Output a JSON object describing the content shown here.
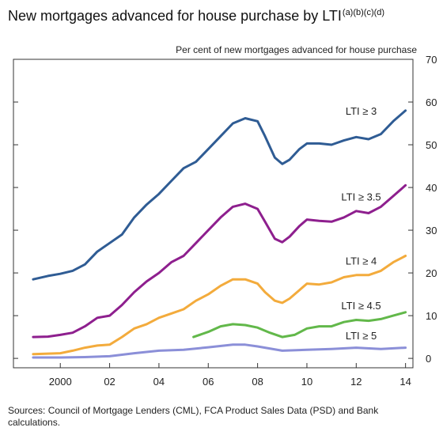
{
  "chart_data": {
    "type": "line",
    "title": "New mortgages advanced for house purchase by LTI",
    "title_notes": "(a)(b)(c)(d)",
    "y_axis_label": "Per cent of new mortgages advanced for house purchase",
    "xlim": [
      1998.1,
      2014.3
    ],
    "xticks": [
      {
        "value": 2000,
        "label": "2000"
      },
      {
        "value": 2002,
        "label": "02"
      },
      {
        "value": 2004,
        "label": "04"
      },
      {
        "value": 2006,
        "label": "06"
      },
      {
        "value": 2008,
        "label": "08"
      },
      {
        "value": 2010,
        "label": "10"
      },
      {
        "value": 2012,
        "label": "12"
      },
      {
        "value": 2014,
        "label": "14"
      }
    ],
    "ylim": [
      -2.2,
      70
    ],
    "yticks": [
      0,
      10,
      20,
      30,
      40,
      50,
      60,
      70
    ],
    "series": [
      {
        "name": "LTI ≥ 3",
        "color": "#2f5c94",
        "x": [
          1998.9,
          1999.5,
          2000,
          2000.5,
          2001,
          2001.5,
          2002,
          2002.5,
          2003,
          2003.5,
          2004,
          2004.5,
          2005,
          2005.5,
          2006,
          2006.5,
          2007,
          2007.5,
          2008,
          2008.3,
          2008.7,
          2009,
          2009.3,
          2009.7,
          2010,
          2010.5,
          2011,
          2011.5,
          2012,
          2012.5,
          2013,
          2013.5,
          2014
        ],
        "values": [
          18.5,
          19.3,
          19.8,
          20.5,
          22,
          25,
          27,
          29,
          33,
          36,
          38.5,
          41.5,
          44.5,
          46,
          49,
          52,
          55,
          56.2,
          55.5,
          52,
          47,
          45.5,
          46.5,
          49,
          50.3,
          50.3,
          50,
          51,
          51.8,
          51.3,
          52.5,
          55.5,
          58
        ]
      },
      {
        "name": "LTI ≥ 3.5",
        "color": "#8e1f8e",
        "x": [
          1998.9,
          1999.5,
          2000,
          2000.5,
          2001,
          2001.5,
          2002,
          2002.5,
          2003,
          2003.5,
          2004,
          2004.5,
          2005,
          2005.5,
          2006,
          2006.5,
          2007,
          2007.5,
          2008,
          2008.3,
          2008.7,
          2009,
          2009.3,
          2009.7,
          2010,
          2010.5,
          2011,
          2011.5,
          2012,
          2012.5,
          2013,
          2013.5,
          2014
        ],
        "values": [
          5,
          5.1,
          5.5,
          6,
          7.5,
          9.5,
          10,
          12.5,
          15.5,
          18,
          20,
          22.5,
          24,
          27,
          30,
          33,
          35.5,
          36.2,
          35,
          32,
          28,
          27.2,
          28.5,
          31,
          32.5,
          32.2,
          32,
          33,
          34.5,
          34,
          35.5,
          38,
          40.5
        ]
      },
      {
        "name": "LTI ≥ 4",
        "color": "#f3ab3c",
        "x": [
          1998.9,
          2000,
          2000.5,
          2001,
          2001.5,
          2002,
          2002.5,
          2003,
          2003.5,
          2004,
          2004.5,
          2005,
          2005.5,
          2006,
          2006.5,
          2007,
          2007.5,
          2008,
          2008.3,
          2008.7,
          2009,
          2009.3,
          2009.7,
          2010,
          2010.5,
          2011,
          2011.5,
          2012,
          2012.5,
          2013,
          2013.5,
          2014
        ],
        "values": [
          1,
          1.2,
          1.8,
          2.5,
          3,
          3.2,
          5,
          7,
          8,
          9.5,
          10.5,
          11.5,
          13.5,
          15,
          17,
          18.5,
          18.5,
          17.5,
          15.5,
          13.5,
          13,
          14,
          16,
          17.5,
          17.3,
          17.8,
          19,
          19.5,
          19.5,
          20.5,
          22.5,
          24
        ]
      },
      {
        "name": "LTI ≥ 4.5",
        "color": "#62b84a",
        "x": [
          2005.4,
          2006,
          2006.5,
          2007,
          2007.5,
          2008,
          2008.5,
          2009,
          2009.5,
          2010,
          2010.5,
          2011,
          2011.5,
          2012,
          2012.5,
          2013,
          2013.5,
          2014
        ],
        "values": [
          5,
          6.2,
          7.5,
          8,
          7.8,
          7.2,
          6,
          5,
          5.5,
          7,
          7.5,
          7.5,
          8.5,
          9,
          8.8,
          9.2,
          10,
          10.8
        ]
      },
      {
        "name": "LTI ≥ 5",
        "color": "#8b8fd8",
        "x": [
          1998.9,
          2000,
          2001,
          2002,
          2003,
          2004,
          2005,
          2006,
          2007,
          2007.5,
          2008,
          2009,
          2010,
          2011,
          2012,
          2013,
          2014
        ],
        "values": [
          0.2,
          0.2,
          0.3,
          0.5,
          1.2,
          1.8,
          2,
          2.6,
          3.2,
          3.2,
          2.8,
          1.8,
          2,
          2.2,
          2.5,
          2.2,
          2.5
        ]
      }
    ],
    "source": "Sources:  Council of Mortgage Lenders (CML), FCA Product Sales Data (PSD) and Bank calculations."
  }
}
